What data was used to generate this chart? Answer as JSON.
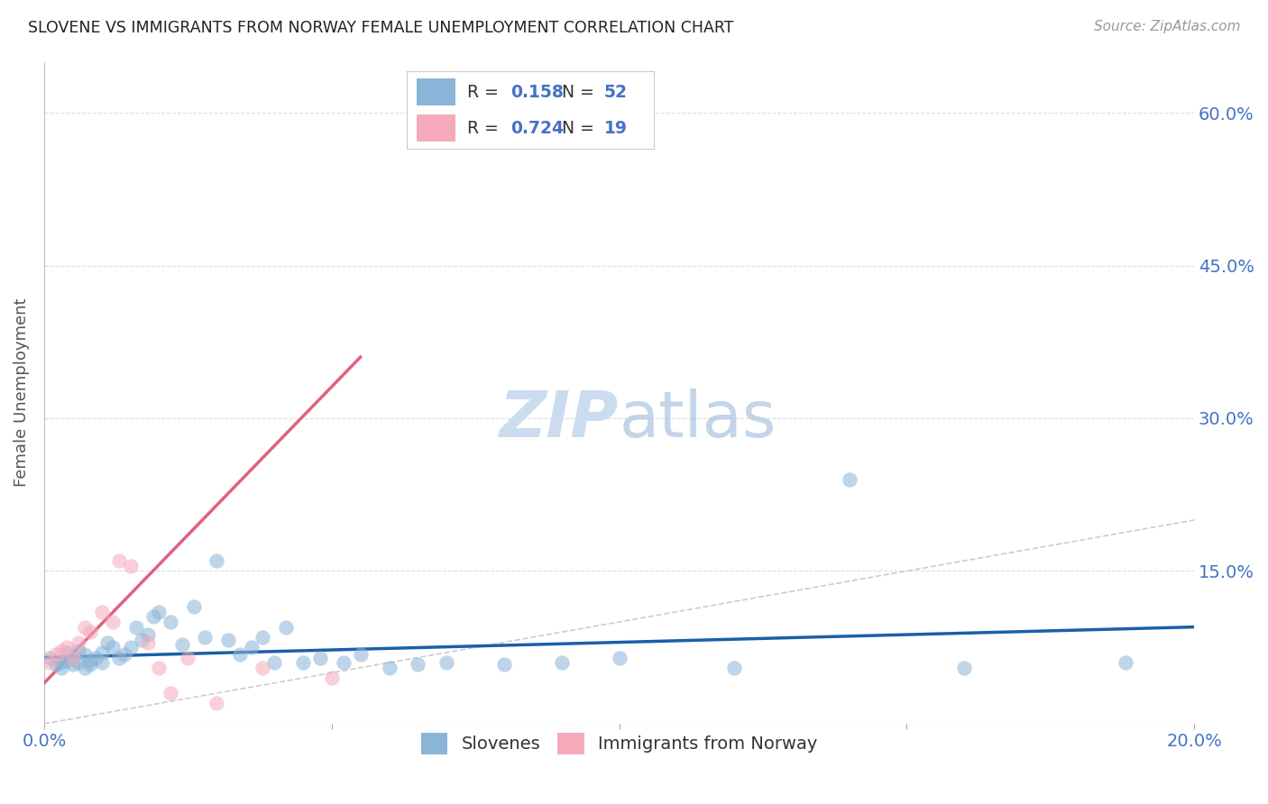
{
  "title": "SLOVENE VS IMMIGRANTS FROM NORWAY FEMALE UNEMPLOYMENT CORRELATION CHART",
  "source": "Source: ZipAtlas.com",
  "ylabel": "Female Unemployment",
  "xlim": [
    0.0,
    0.2
  ],
  "ylim": [
    0.0,
    0.65
  ],
  "xtick_positions": [
    0.0,
    0.05,
    0.1,
    0.15,
    0.2
  ],
  "xtick_labels": [
    "0.0%",
    "",
    "",
    "",
    "20.0%"
  ],
  "ytick_vals": [
    0.15,
    0.3,
    0.45,
    0.6
  ],
  "ytick_labels": [
    "15.0%",
    "30.0%",
    "45.0%",
    "60.0%"
  ],
  "legend_label1": "Slovenes",
  "legend_label2": "Immigrants from Norway",
  "blue_color": "#8ab4d8",
  "pink_color": "#f5aabc",
  "blue_line_color": "#1a5fa8",
  "pink_line_color": "#e06080",
  "ref_line_color": "#cccccc",
  "title_color": "#222222",
  "source_color": "#999999",
  "tick_color": "#4472c4",
  "ylabel_color": "#555555",
  "background_color": "#ffffff",
  "watermark_color": "#ccdcf0",
  "slovene_x": [
    0.001,
    0.002,
    0.003,
    0.003,
    0.004,
    0.004,
    0.005,
    0.005,
    0.006,
    0.006,
    0.007,
    0.007,
    0.008,
    0.008,
    0.009,
    0.01,
    0.01,
    0.011,
    0.012,
    0.013,
    0.014,
    0.015,
    0.016,
    0.017,
    0.018,
    0.019,
    0.02,
    0.022,
    0.024,
    0.026,
    0.028,
    0.03,
    0.032,
    0.034,
    0.036,
    0.038,
    0.04,
    0.042,
    0.045,
    0.048,
    0.052,
    0.055,
    0.06,
    0.065,
    0.07,
    0.08,
    0.09,
    0.1,
    0.12,
    0.14,
    0.16,
    0.188
  ],
  "slovene_y": [
    0.065,
    0.058,
    0.06,
    0.055,
    0.062,
    0.07,
    0.058,
    0.065,
    0.06,
    0.072,
    0.055,
    0.068,
    0.062,
    0.058,
    0.065,
    0.07,
    0.06,
    0.08,
    0.075,
    0.065,
    0.068,
    0.075,
    0.095,
    0.082,
    0.088,
    0.105,
    0.11,
    0.1,
    0.078,
    0.115,
    0.085,
    0.16,
    0.082,
    0.068,
    0.075,
    0.085,
    0.06,
    0.095,
    0.06,
    0.065,
    0.06,
    0.068,
    0.055,
    0.058,
    0.06,
    0.058,
    0.06,
    0.065,
    0.055,
    0.24,
    0.055,
    0.06
  ],
  "norway_x": [
    0.001,
    0.002,
    0.003,
    0.004,
    0.005,
    0.006,
    0.007,
    0.008,
    0.01,
    0.012,
    0.013,
    0.015,
    0.018,
    0.02,
    0.022,
    0.025,
    0.03,
    0.038,
    0.05
  ],
  "norway_y": [
    0.06,
    0.068,
    0.072,
    0.075,
    0.065,
    0.08,
    0.095,
    0.09,
    0.11,
    0.1,
    0.16,
    0.155,
    0.08,
    0.055,
    0.03,
    0.065,
    0.02,
    0.055,
    0.045
  ],
  "pink_line_x": [
    0.0,
    0.055
  ],
  "pink_line_y": [
    0.04,
    0.36
  ],
  "blue_line_x": [
    0.0,
    0.2
  ],
  "blue_line_y": [
    0.065,
    0.095
  ]
}
